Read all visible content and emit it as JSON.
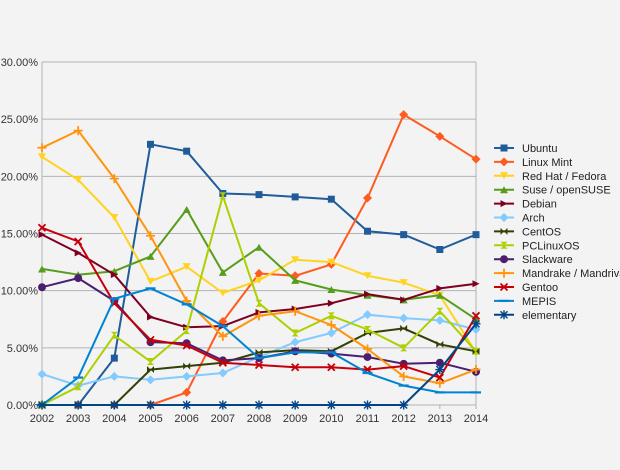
{
  "chart_data": {
    "type": "line",
    "title": "",
    "xlabel": "",
    "ylabel": "",
    "x": [
      "2002",
      "2003",
      "2004",
      "2005",
      "2006",
      "2007",
      "2008",
      "2009",
      "2010",
      "2011",
      "2012",
      "2013",
      "2014"
    ],
    "ylim": [
      0,
      30
    ],
    "yticks": [
      0,
      5,
      10,
      15,
      20,
      25,
      30
    ],
    "ytick_format": "percent_2dp",
    "grid": "horizontal",
    "legend_position": "right",
    "series": [
      {
        "name": "Ubuntu",
        "color": "#1f5c99",
        "marker": "square",
        "values": [
          0,
          0,
          4.1,
          22.8,
          22.2,
          18.5,
          18.4,
          18.2,
          18.0,
          15.2,
          14.9,
          13.6,
          14.9
        ]
      },
      {
        "name": "Linux Mint",
        "color": "#ff5a1f",
        "marker": "diamond",
        "values": [
          0,
          0,
          0,
          0,
          1.1,
          7.3,
          11.5,
          11.3,
          12.3,
          18.1,
          25.4,
          23.5,
          21.5
        ]
      },
      {
        "name": "Red Hat / Fedora",
        "color": "#ffd320",
        "marker": "triangle-down",
        "values": [
          21.7,
          19.7,
          16.4,
          10.8,
          12.1,
          9.8,
          10.9,
          12.7,
          12.5,
          11.3,
          10.7,
          9.6,
          4.6
        ]
      },
      {
        "name": "Suse / openSUSE",
        "color": "#579d1c",
        "marker": "triangle-up",
        "values": [
          11.9,
          11.4,
          11.7,
          13.0,
          17.1,
          11.6,
          13.8,
          10.9,
          10.1,
          9.6,
          9.2,
          9.6,
          7.5
        ]
      },
      {
        "name": "Debian",
        "color": "#7e0021",
        "marker": "arrow-right",
        "values": [
          14.9,
          13.3,
          11.4,
          7.7,
          6.8,
          6.9,
          8.1,
          8.4,
          8.9,
          9.7,
          9.2,
          10.2,
          10.6
        ]
      },
      {
        "name": "Arch",
        "color": "#83caff",
        "marker": "diamond",
        "values": [
          2.7,
          1.7,
          2.5,
          2.2,
          2.5,
          2.8,
          4.2,
          5.5,
          6.3,
          7.9,
          7.6,
          7.4,
          6.6
        ]
      },
      {
        "name": "CentOS",
        "color": "#314004",
        "marker": "bowtie",
        "values": [
          0,
          0,
          0,
          3.1,
          3.4,
          3.7,
          4.6,
          4.8,
          4.7,
          6.3,
          6.7,
          5.3,
          4.7
        ]
      },
      {
        "name": "PCLinuxOS",
        "color": "#aecf00",
        "marker": "hourglass",
        "values": [
          0,
          1.6,
          6.1,
          3.8,
          6.5,
          18.3,
          8.9,
          6.3,
          7.8,
          6.6,
          5.0,
          8.2,
          4.7
        ]
      },
      {
        "name": "Slackware",
        "color": "#4b1f6f",
        "marker": "circle",
        "values": [
          10.3,
          11.1,
          9.1,
          5.5,
          5.4,
          3.9,
          4.1,
          4.7,
          4.5,
          4.2,
          3.6,
          3.7,
          2.9
        ]
      },
      {
        "name": "Mandrake / Mandriva",
        "color": "#ff950e",
        "marker": "plus",
        "values": [
          22.5,
          24.0,
          19.8,
          14.8,
          9.1,
          6.0,
          7.8,
          8.2,
          7.0,
          4.9,
          2.5,
          1.9,
          3.1
        ]
      },
      {
        "name": "Gentoo",
        "color": "#c5000b",
        "marker": "x",
        "values": [
          15.5,
          14.3,
          8.9,
          5.7,
          5.2,
          3.7,
          3.5,
          3.3,
          3.3,
          3.1,
          3.4,
          2.4,
          7.8
        ]
      },
      {
        "name": "MEPIS",
        "color": "#0084d1",
        "marker": "dash",
        "values": [
          0,
          2.4,
          9.3,
          10.2,
          8.8,
          6.9,
          4.1,
          4.6,
          4.6,
          2.8,
          1.7,
          1.1,
          1.1
        ]
      },
      {
        "name": "elementary",
        "color": "#004586",
        "marker": "star",
        "values": [
          0,
          0,
          0,
          0,
          0,
          0,
          0,
          0,
          0,
          0,
          0,
          3.1,
          7.1
        ]
      }
    ]
  }
}
